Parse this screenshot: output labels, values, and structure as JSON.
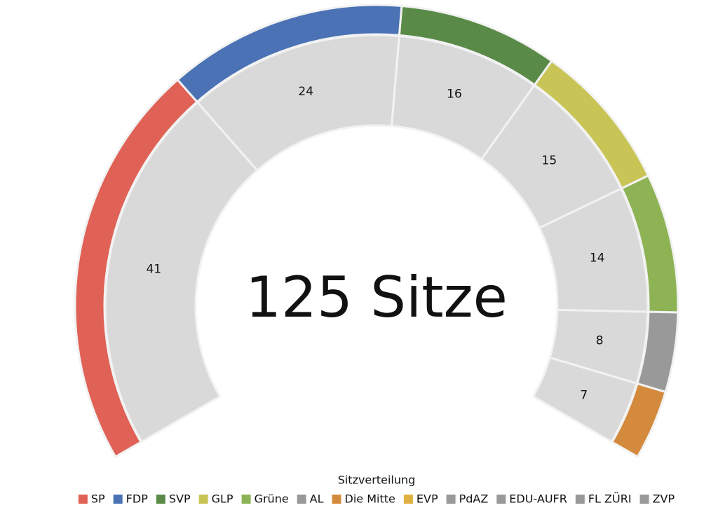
{
  "chart_data": {
    "type": "gauge",
    "center_label": "125 Sitze",
    "legend_title": "Sitzverteilung",
    "categories": [
      "SP",
      "FDP",
      "SVP",
      "GLP",
      "Grüne",
      "AL",
      "Die Mitte",
      "EVP",
      "PdAZ",
      "EDU-AUFR",
      "FL ZÜRI",
      "ZVP"
    ],
    "values": [
      41,
      24,
      16,
      15,
      14,
      8,
      7,
      0,
      0,
      0,
      0,
      0
    ],
    "colors": [
      "#e06155",
      "#4a72b5",
      "#5a8a48",
      "#c8c455",
      "#8db355",
      "#999999",
      "#d48a3c",
      "#e0b040",
      "#999999",
      "#999999",
      "#999999",
      "#999999"
    ],
    "segment_color": "#d9d9d9",
    "legend": "bottom"
  }
}
